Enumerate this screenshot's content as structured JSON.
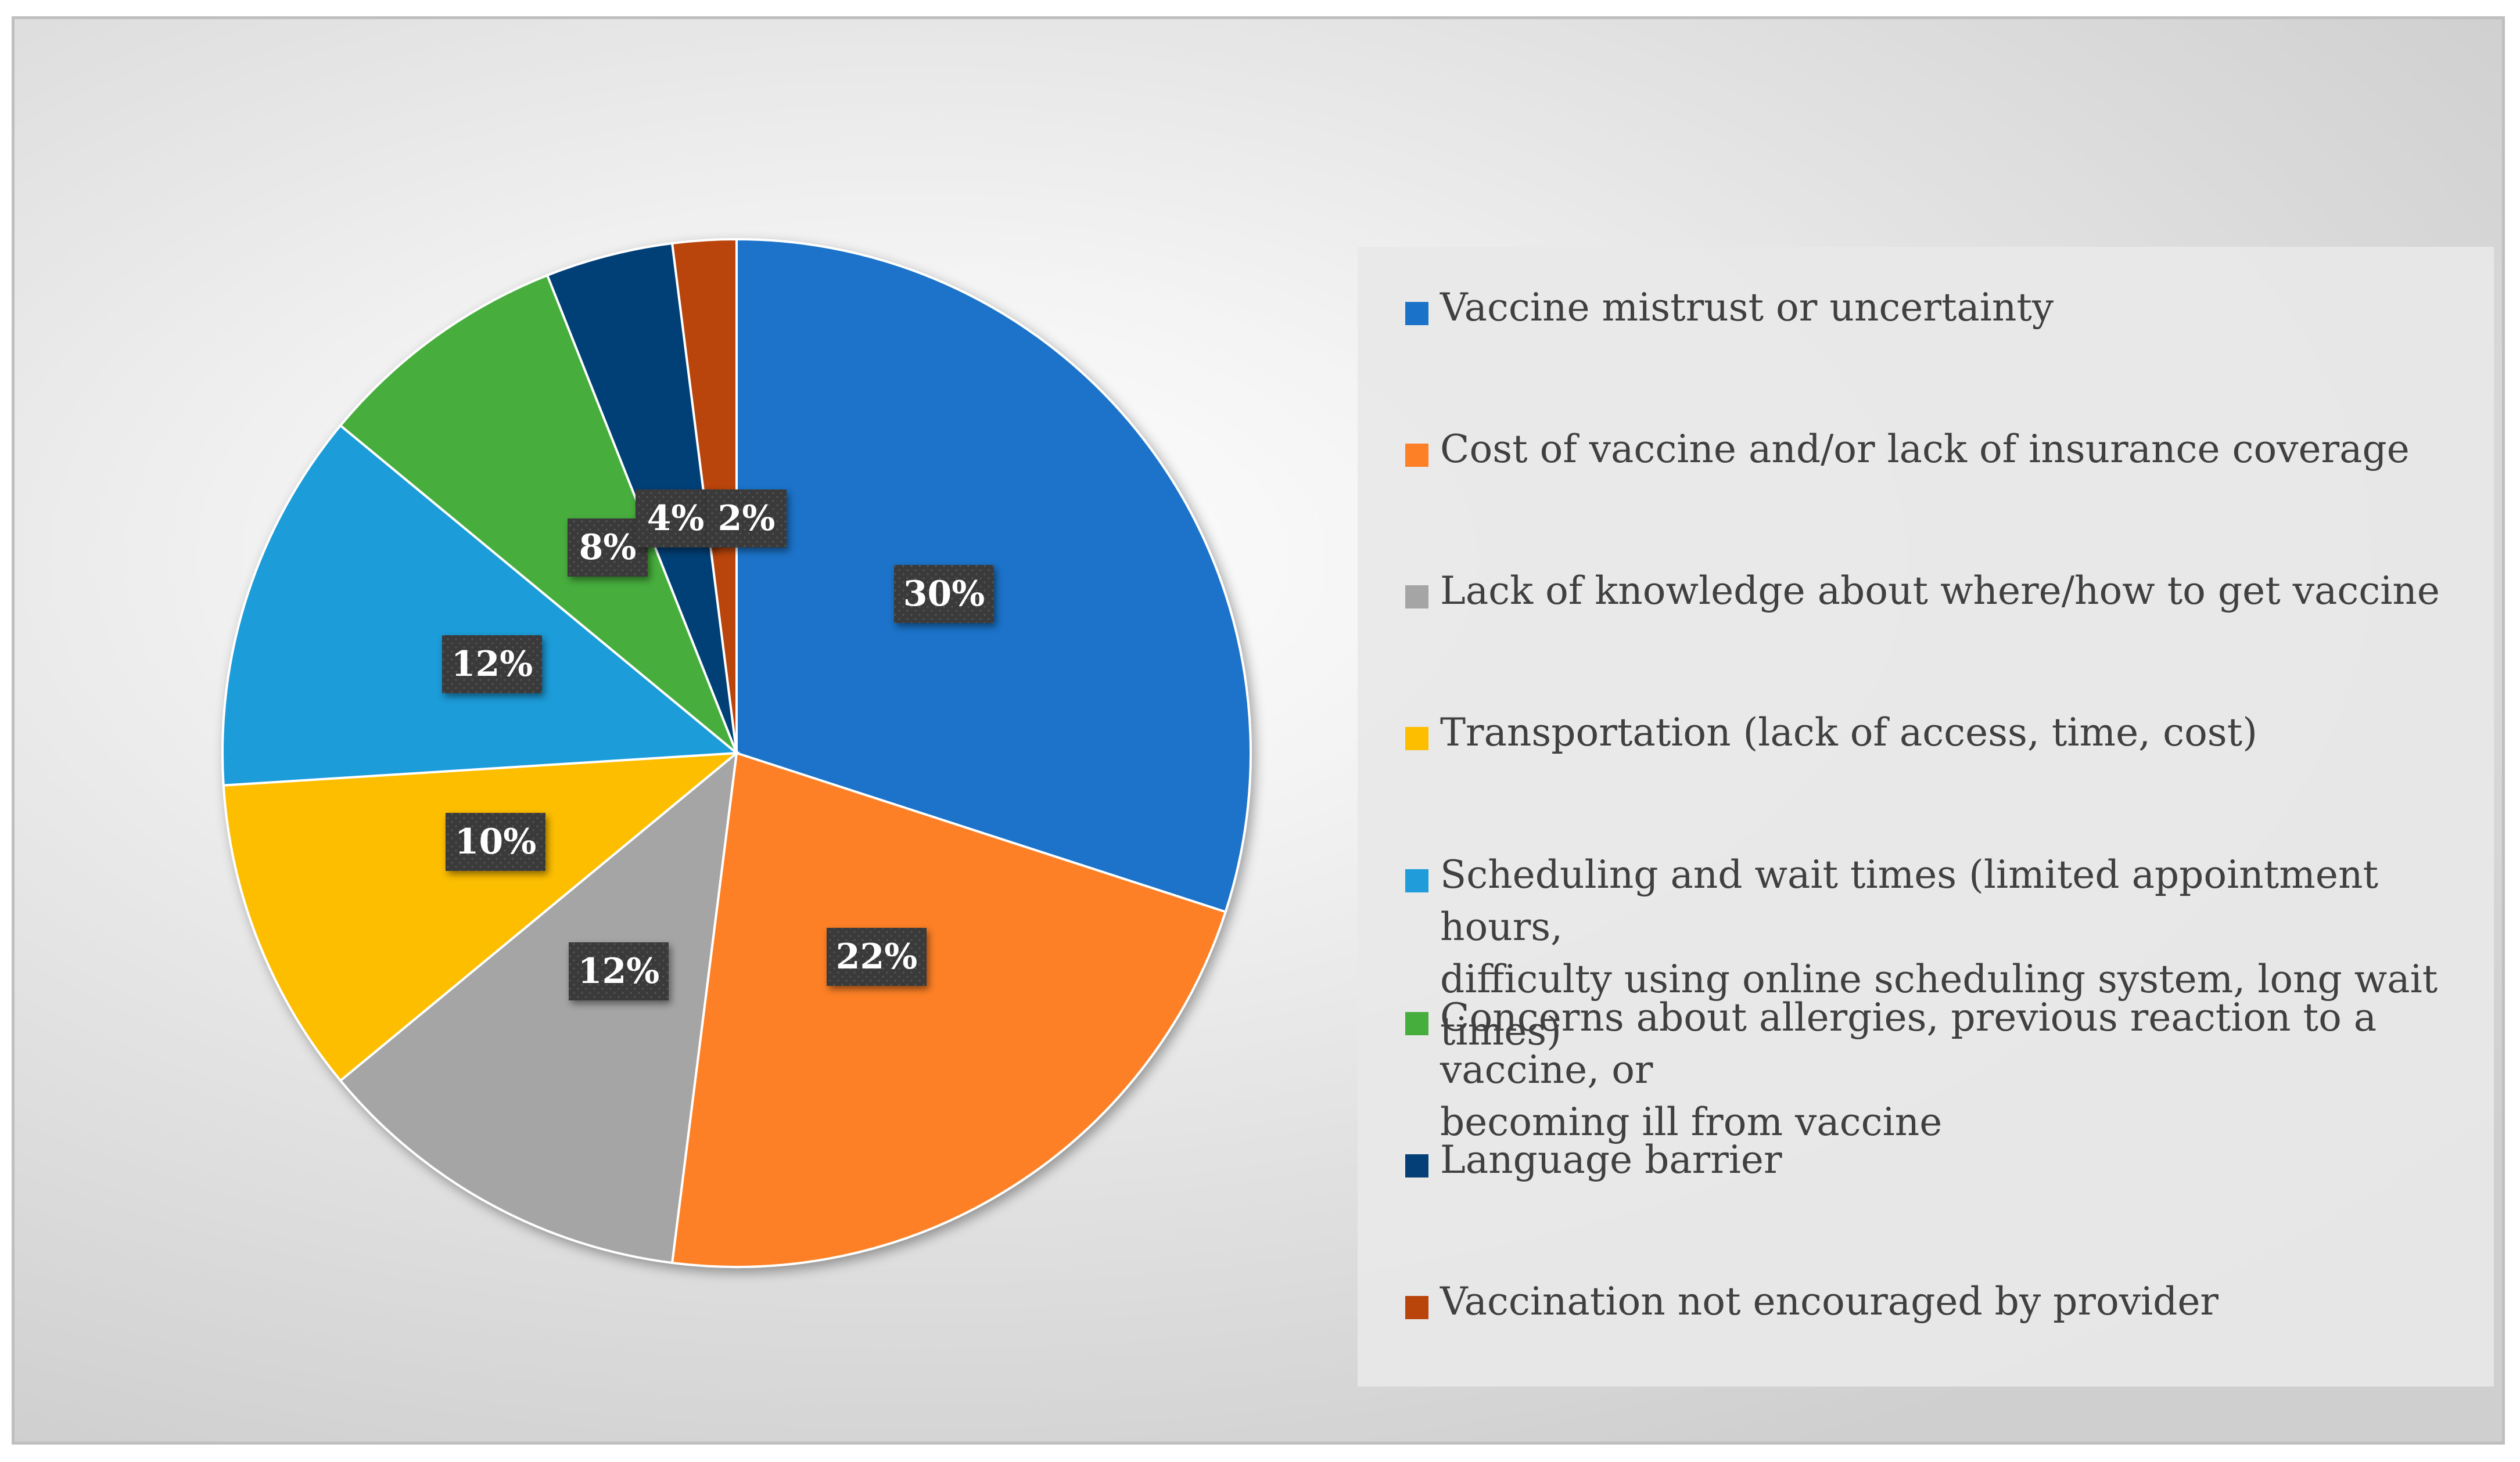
{
  "chart_data": {
    "type": "pie",
    "title": "",
    "slices": [
      {
        "label": "Vaccine mistrust or uncertainty",
        "value": 30,
        "display": "30%",
        "color": "#1B73C9"
      },
      {
        "label": "Cost of vaccine and/or lack of insurance coverage",
        "value": 22,
        "display": "22%",
        "color": "#FD8027"
      },
      {
        "label": "Lack of knowledge about where/how to get vaccine",
        "value": 12,
        "display": "12%",
        "color": "#A5A5A5"
      },
      {
        "label": "Transportation (lack of access, time, cost)",
        "value": 10,
        "display": "10%",
        "color": "#FDBE00"
      },
      {
        "label": "Scheduling and wait times (limited appointment hours,\ndifficulty using online scheduling system, long wait times)",
        "value": 12,
        "display": "12%",
        "color": "#1F9CD9"
      },
      {
        "label": "Concerns about allergies, previous reaction to a vaccine, or\nbecoming ill from vaccine",
        "value": 8,
        "display": "8%",
        "color": "#46AE3C"
      },
      {
        "label": "Language barrier",
        "value": 4,
        "display": "4%",
        "color": "#043F77"
      },
      {
        "label": "Vaccination not encouraged by provider",
        "value": 2,
        "display": "2%",
        "color": "#B9450A"
      }
    ],
    "start_angle": "12 o'clock",
    "direction": "clockwise",
    "legend_position": "right",
    "data_label_style": "dark boxed percentage labels"
  }
}
